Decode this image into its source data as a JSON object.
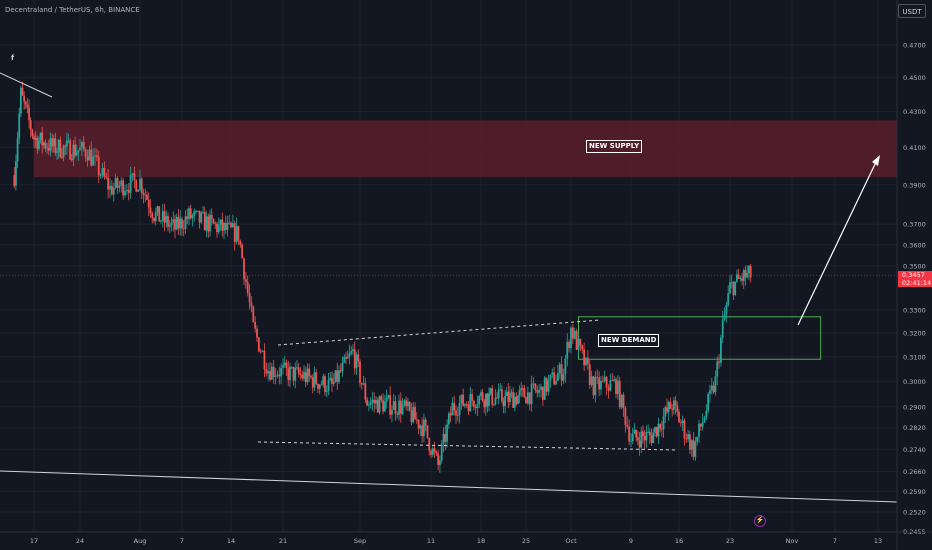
{
  "header": {
    "symbol_line": "Decentraland / TetherUS, 6h, BINANCE",
    "marker": "f"
  },
  "unit_button": "USDT",
  "price_tag": {
    "price": "0.3457",
    "countdown": "02:41:14"
  },
  "icons": {
    "flash": "flash-icon"
  },
  "colors": {
    "background": "#131722",
    "up": "#26a69a",
    "down": "#ef5350",
    "supply_zone": "#5a1f2c",
    "demand_zone": "#4caf50",
    "grid": "#1e222d",
    "axis_text": "#b2b5be"
  },
  "chart_data": {
    "type": "candlestick",
    "title": "Decentraland / TetherUS, 6h, BINANCE",
    "y_scale": "log",
    "ylim": [
      0.2455,
      0.49
    ],
    "y_ticks": [
      "0.4700",
      "0.4500",
      "0.4300",
      "0.4100",
      "0.3900",
      "0.3700",
      "0.3600",
      "0.3500",
      "0.3300",
      "0.3200",
      "0.3100",
      "0.3000",
      "0.2900",
      "0.2820",
      "0.2740",
      "0.2660",
      "0.2590",
      "0.2520",
      "0.2455"
    ],
    "x_ticks": [
      "17",
      "24",
      "Aug",
      "7",
      "14",
      "21",
      "Sep",
      "11",
      "18",
      "25",
      "Oct",
      "9",
      "16",
      "23",
      "Nov",
      "7",
      "13"
    ],
    "grid": true,
    "last_price": 0.3457,
    "zones": [
      {
        "label": "NEW SUPPLY",
        "low": 0.394,
        "high": 0.425
      },
      {
        "label": "NEW DEMAND",
        "low": 0.309,
        "high": 0.327
      }
    ],
    "price_path": [
      {
        "date": "2023-07-14",
        "price": 0.395
      },
      {
        "date": "2023-07-15",
        "price": 0.44
      },
      {
        "date": "2023-07-17",
        "price": 0.415
      },
      {
        "date": "2023-07-20",
        "price": 0.41
      },
      {
        "date": "2023-07-25",
        "price": 0.408
      },
      {
        "date": "2023-07-28",
        "price": 0.388
      },
      {
        "date": "2023-08-01",
        "price": 0.392
      },
      {
        "date": "2023-08-03",
        "price": 0.375
      },
      {
        "date": "2023-08-06",
        "price": 0.368
      },
      {
        "date": "2023-08-08",
        "price": 0.374
      },
      {
        "date": "2023-08-11",
        "price": 0.37
      },
      {
        "date": "2023-08-15",
        "price": 0.365
      },
      {
        "date": "2023-08-17",
        "price": 0.322
      },
      {
        "date": "2023-08-19",
        "price": 0.305
      },
      {
        "date": "2023-08-24",
        "price": 0.302
      },
      {
        "date": "2023-08-28",
        "price": 0.298
      },
      {
        "date": "2023-08-31",
        "price": 0.312
      },
      {
        "date": "2023-09-02",
        "price": 0.292
      },
      {
        "date": "2023-09-07",
        "price": 0.29
      },
      {
        "date": "2023-09-10",
        "price": 0.282
      },
      {
        "date": "2023-09-12",
        "price": 0.268
      },
      {
        "date": "2023-09-14",
        "price": 0.29
      },
      {
        "date": "2023-09-18",
        "price": 0.294
      },
      {
        "date": "2023-09-22",
        "price": 0.293
      },
      {
        "date": "2023-09-27",
        "price": 0.296
      },
      {
        "date": "2023-09-30",
        "price": 0.305
      },
      {
        "date": "2023-10-01",
        "price": 0.322
      },
      {
        "date": "2023-10-04",
        "price": 0.298
      },
      {
        "date": "2023-10-07",
        "price": 0.299
      },
      {
        "date": "2023-10-09",
        "price": 0.278
      },
      {
        "date": "2023-10-12",
        "price": 0.279
      },
      {
        "date": "2023-10-15",
        "price": 0.291
      },
      {
        "date": "2023-10-18",
        "price": 0.274
      },
      {
        "date": "2023-10-21",
        "price": 0.3
      },
      {
        "date": "2023-10-22",
        "price": 0.323
      },
      {
        "date": "2023-10-23",
        "price": 0.34
      },
      {
        "date": "2023-10-25",
        "price": 0.345
      },
      {
        "date": "2023-10-26",
        "price": 0.3457
      }
    ]
  }
}
